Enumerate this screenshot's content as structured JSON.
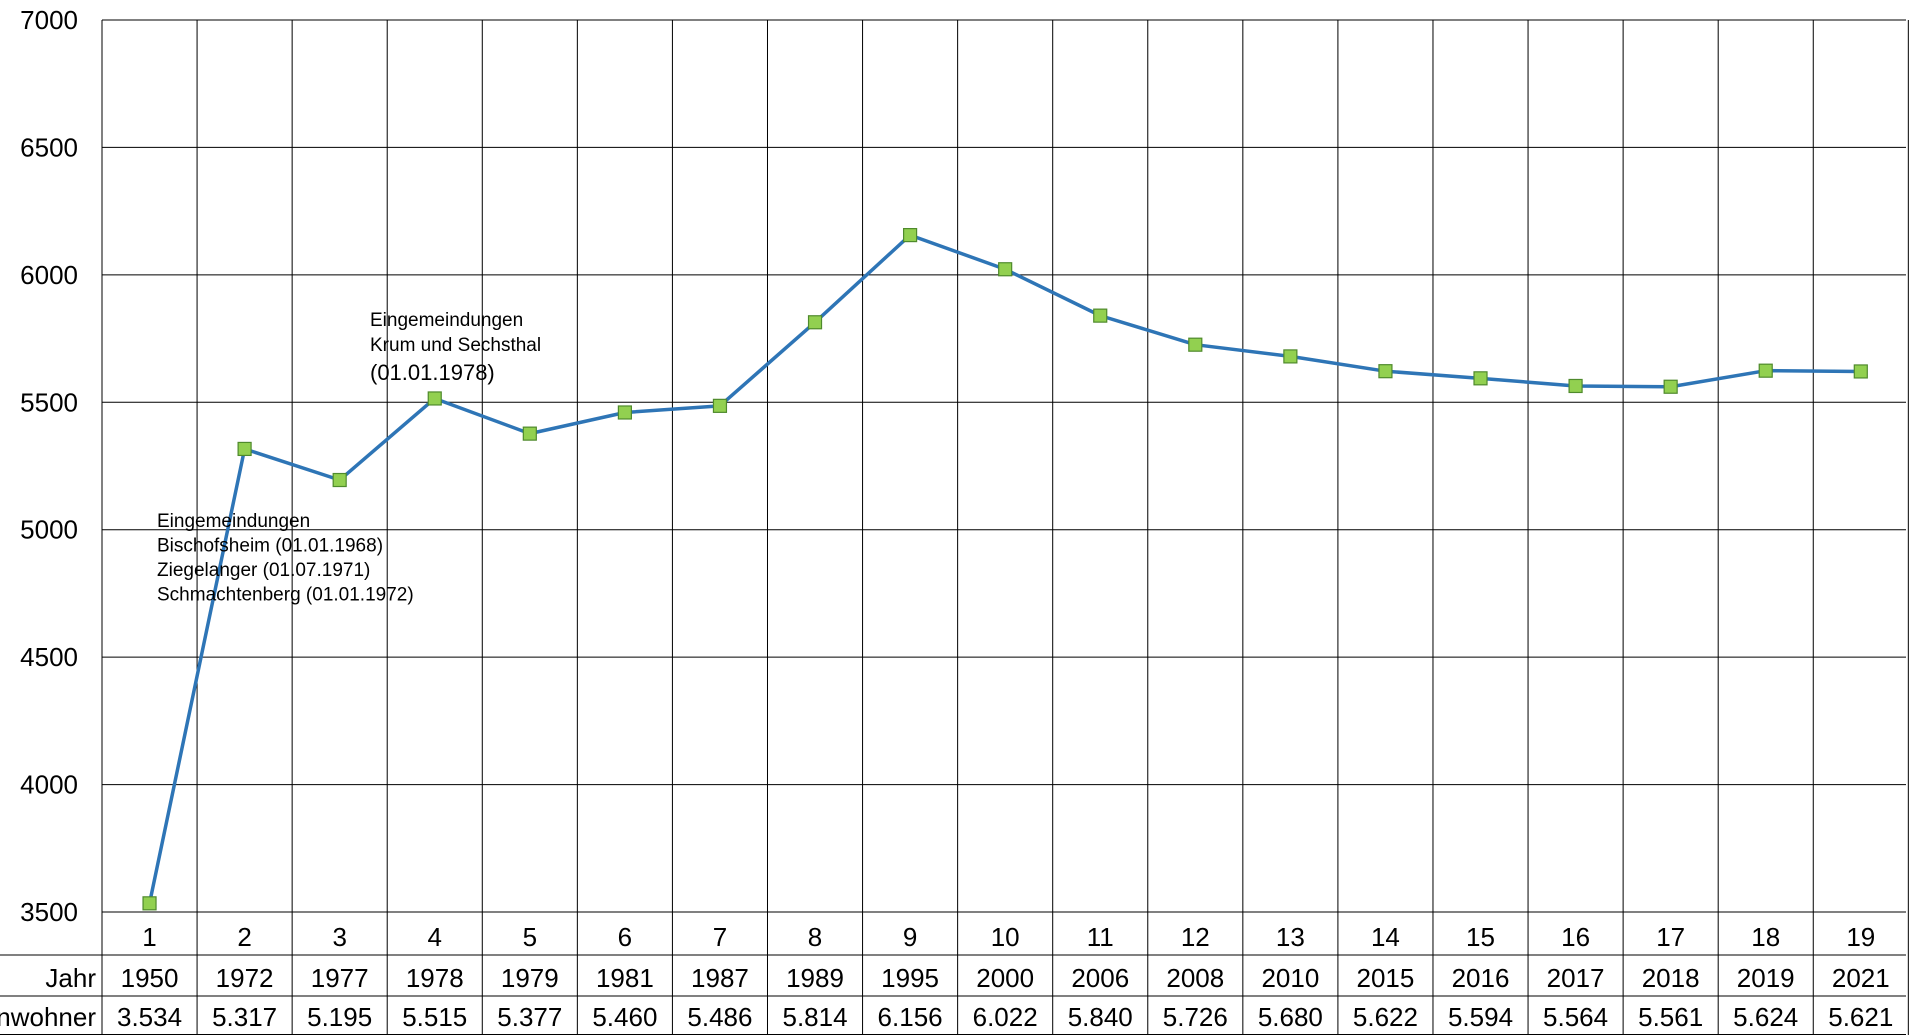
{
  "chart_data": {
    "type": "line",
    "categories": [
      "1",
      "2",
      "3",
      "4",
      "5",
      "6",
      "7",
      "8",
      "9",
      "10",
      "11",
      "12",
      "13",
      "14",
      "15",
      "16",
      "17",
      "18",
      "19"
    ],
    "ylim": [
      3500,
      7000
    ],
    "yticks": [
      "3500",
      "4000",
      "4500",
      "5000",
      "5500",
      "6000",
      "6500",
      "7000"
    ],
    "grid": true,
    "series": [
      {
        "values": [
          3534,
          5317,
          5195,
          5515,
          5377,
          5460,
          5486,
          5814,
          6156,
          6022,
          5840,
          5726,
          5680,
          5622,
          5594,
          5564,
          5561,
          5624,
          5621
        ],
        "line_color": "#2E75B6",
        "marker_color": "#92D050",
        "marker_edge": "#4F8A2C"
      }
    ],
    "table": {
      "rows": [
        {
          "label": "Jahr",
          "cells": [
            "1950",
            "1972",
            "1977",
            "1978",
            "1979",
            "1981",
            "1987",
            "1989",
            "1995",
            "2000",
            "2006",
            "2008",
            "2010",
            "2015",
            "2016",
            "2017",
            "2018",
            "2019",
            "2021"
          ]
        },
        {
          "label": "Einwohner",
          "cells": [
            "3.534",
            "5.317",
            "5.195",
            "5.515",
            "5.377",
            "5.460",
            "5.486",
            "5.814",
            "6.156",
            "6.022",
            "5.840",
            "5.726",
            "5.680",
            "5.622",
            "5.594",
            "5.564",
            "5.561",
            "5.624",
            "5.621"
          ]
        }
      ]
    },
    "annotations": [
      {
        "lines": [
          "Eingemeindungen",
          "Krum und Sechsthal",
          "(01.01.1978)"
        ]
      },
      {
        "lines": [
          "Eingemeindungen",
          "Bischofsheim (01.01.1968)",
          "Ziegelanger (01.07.1971)",
          "Schmachtenberg (01.01.1972)"
        ]
      }
    ]
  }
}
